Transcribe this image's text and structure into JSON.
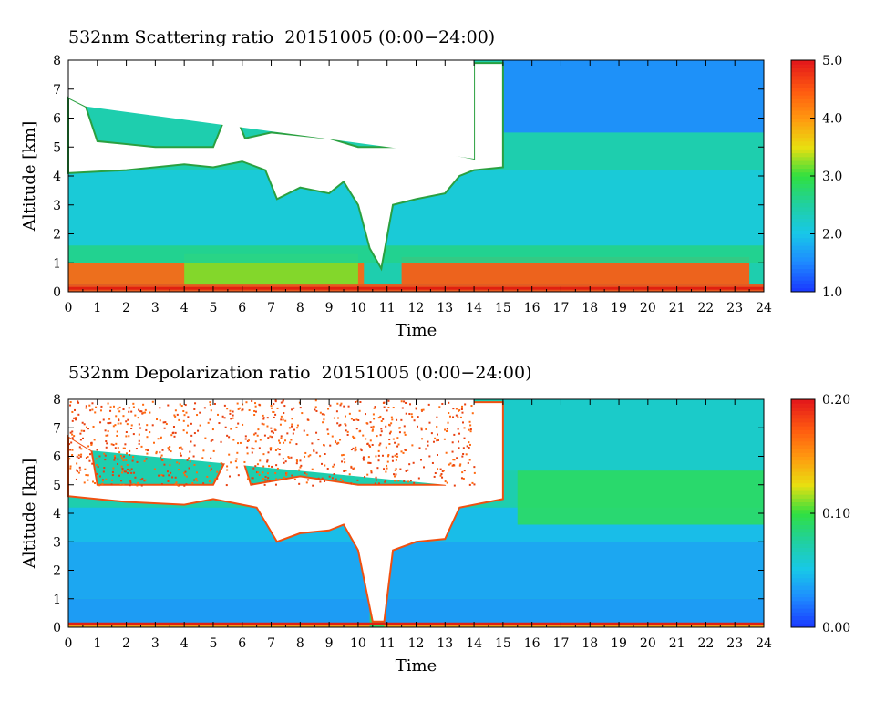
{
  "colors": {
    "colormap": [
      "#1a3cff",
      "#1e8cff",
      "#18c8e8",
      "#20d0a0",
      "#30e040",
      "#e8e010",
      "#ff9a10",
      "#ff5a10",
      "#e41a1a"
    ],
    "cloud_white": "#ffffff",
    "ground_line": "#e02010"
  },
  "chart_data": [
    {
      "type": "heatmap",
      "title": "532nm Scattering ratio  20151005 (0:00−24:00)",
      "xlabel": "Time",
      "ylabel": "Altitude [km]",
      "xlim": [
        0,
        24
      ],
      "ylim": [
        0,
        8
      ],
      "x_ticks": [
        "0",
        "1",
        "2",
        "3",
        "4",
        "5",
        "6",
        "7",
        "8",
        "9",
        "10",
        "11",
        "12",
        "13",
        "14",
        "15",
        "16",
        "17",
        "18",
        "19",
        "20",
        "21",
        "22",
        "23",
        "24"
      ],
      "y_ticks": [
        "0",
        "1",
        "2",
        "3",
        "4",
        "5",
        "6",
        "7",
        "8"
      ],
      "colorbar": {
        "range": [
          1.0,
          5.0
        ],
        "tick_labels": [
          "1.0",
          "2.0",
          "3.0",
          "4.0",
          "5.0"
        ],
        "tick_values": [
          1.0,
          2.0,
          3.0,
          4.0,
          5.0
        ]
      },
      "cloud_base_km": [
        [
          0,
          4.1
        ],
        [
          2,
          4.2
        ],
        [
          4,
          4.4
        ],
        [
          5,
          4.3
        ],
        [
          6,
          4.5
        ],
        [
          6.8,
          4.2
        ],
        [
          7.2,
          3.2
        ],
        [
          8,
          3.6
        ],
        [
          9,
          3.4
        ],
        [
          9.5,
          3.8
        ],
        [
          10,
          3.0
        ],
        [
          10.4,
          1.5
        ],
        [
          10.8,
          0.8
        ],
        [
          11.2,
          3.0
        ],
        [
          12,
          3.2
        ],
        [
          13,
          3.4
        ],
        [
          13.5,
          4.0
        ],
        [
          14,
          4.2
        ],
        [
          15,
          4.3
        ]
      ],
      "cloud_top_km": [
        [
          0,
          6.7
        ],
        [
          0.6,
          6.4
        ],
        [
          1,
          5.2
        ],
        [
          3,
          5.0
        ],
        [
          5,
          5.0
        ],
        [
          5.6,
          6.5
        ],
        [
          6.1,
          5.3
        ],
        [
          7,
          5.5
        ],
        [
          9,
          5.3
        ],
        [
          10,
          5.0
        ],
        [
          12,
          5.0
        ],
        [
          14,
          4.6
        ],
        [
          14,
          7.9
        ],
        [
          15,
          7.9
        ]
      ],
      "layers": [
        {
          "x0": 0,
          "x1": 24,
          "y0": 0.0,
          "y1": 0.25,
          "value": 4.6
        },
        {
          "x0": 0,
          "x1": 10.2,
          "y0": 0.25,
          "y1": 1.0,
          "value": 4.4
        },
        {
          "x0": 11.5,
          "x1": 23.5,
          "y0": 0.25,
          "y1": 1.2,
          "value": 4.5
        },
        {
          "x0": 4,
          "x1": 10,
          "y0": 0.25,
          "y1": 1.3,
          "value": 3.2
        },
        {
          "x0": 0,
          "x1": 24,
          "y0": 1.0,
          "y1": 1.6,
          "value": 2.6
        },
        {
          "x0": 0,
          "x1": 24,
          "y0": 1.6,
          "y1": 4.2,
          "value": 2.1
        },
        {
          "x0": 14,
          "x1": 24,
          "y0": 4.2,
          "y1": 5.5,
          "value": 2.4
        },
        {
          "x0": 15,
          "x1": 24,
          "y0": 5.5,
          "y1": 8.0,
          "value": 1.5
        }
      ]
    },
    {
      "type": "heatmap",
      "title": "532nm Depolarization ratio  20151005 (0:00−24:00)",
      "xlabel": "Time",
      "ylabel": "Altitude [km]",
      "xlim": [
        0,
        24
      ],
      "ylim": [
        0,
        8
      ],
      "x_ticks": [
        "0",
        "1",
        "2",
        "3",
        "4",
        "5",
        "6",
        "7",
        "8",
        "9",
        "10",
        "11",
        "12",
        "13",
        "14",
        "15",
        "16",
        "17",
        "18",
        "19",
        "20",
        "21",
        "22",
        "23",
        "24"
      ],
      "y_ticks": [
        "0",
        "1",
        "2",
        "3",
        "4",
        "5",
        "6",
        "7",
        "8"
      ],
      "colorbar": {
        "range": [
          0.0,
          0.2
        ],
        "tick_labels": [
          "0.00",
          "0.10",
          "0.20"
        ],
        "tick_values": [
          0.0,
          0.1,
          0.2
        ]
      },
      "cloud_base_km": [
        [
          0,
          4.6
        ],
        [
          2,
          4.4
        ],
        [
          4,
          4.3
        ],
        [
          5,
          4.5
        ],
        [
          6.5,
          4.2
        ],
        [
          7.2,
          3.0
        ],
        [
          8,
          3.3
        ],
        [
          9,
          3.4
        ],
        [
          9.5,
          3.6
        ],
        [
          10,
          2.7
        ],
        [
          10.5,
          0.2
        ],
        [
          10.9,
          0.2
        ],
        [
          11.2,
          2.7
        ],
        [
          12,
          3.0
        ],
        [
          13,
          3.1
        ],
        [
          13.5,
          4.2
        ],
        [
          15,
          4.5
        ]
      ],
      "cloud_top_km": [
        [
          0,
          6.7
        ],
        [
          0.8,
          6.2
        ],
        [
          1,
          5.0
        ],
        [
          5,
          5.0
        ],
        [
          5.8,
          6.6
        ],
        [
          6.3,
          5.0
        ],
        [
          8,
          5.3
        ],
        [
          10,
          5.0
        ],
        [
          13,
          5.0
        ],
        [
          14,
          7.9
        ],
        [
          15,
          7.9
        ]
      ],
      "layers": [
        {
          "x0": 0,
          "x1": 24,
          "y0": 0.0,
          "y1": 0.1,
          "value": 0.15
        },
        {
          "x0": 0,
          "x1": 24,
          "y0": 0.1,
          "y1": 1.0,
          "value": 0.03
        },
        {
          "x0": 0,
          "x1": 24,
          "y0": 1.0,
          "y1": 3.0,
          "value": 0.035
        },
        {
          "x0": 0,
          "x1": 24,
          "y0": 3.0,
          "y1": 4.2,
          "value": 0.045
        },
        {
          "x0": 15.5,
          "x1": 24,
          "y0": 3.6,
          "y1": 5.5,
          "value": 0.09
        },
        {
          "x0": 15,
          "x1": 24,
          "y0": 5.5,
          "y1": 8.0,
          "value": 0.06
        },
        {
          "x0": 10.4,
          "x1": 10.9,
          "y0": 0.0,
          "y1": 3.0,
          "value": 0.09
        }
      ]
    }
  ]
}
